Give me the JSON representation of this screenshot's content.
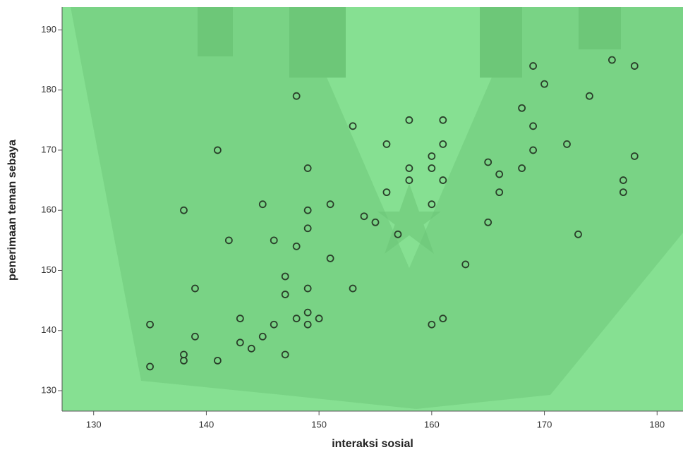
{
  "chart_data": {
    "type": "scatter",
    "x_label": "interaksi sosial",
    "y_label": "penerimaan teman sebaya",
    "x": [
      135,
      135,
      138,
      138,
      138,
      139,
      139,
      141,
      141,
      142,
      143,
      143,
      144,
      145,
      145,
      146,
      146,
      147,
      147,
      147,
      148,
      148,
      148,
      149,
      149,
      149,
      149,
      149,
      149,
      150,
      151,
      151,
      153,
      153,
      154,
      155,
      156,
      156,
      157,
      158,
      158,
      158,
      160,
      160,
      160,
      160,
      161,
      161,
      161,
      161,
      163,
      165,
      165,
      166,
      166,
      168,
      168,
      169,
      169,
      169,
      170,
      172,
      173,
      174,
      176,
      177,
      177,
      178,
      178
    ],
    "values": [
      134,
      141,
      160,
      136,
      135,
      147,
      139,
      170,
      135,
      155,
      142,
      138,
      137,
      161,
      139,
      155,
      141,
      149,
      146,
      136,
      179,
      154,
      142,
      167,
      160,
      157,
      147,
      143,
      141,
      142,
      161,
      152,
      174,
      147,
      159,
      158,
      171,
      163,
      156,
      175,
      167,
      165,
      169,
      167,
      161,
      141,
      175,
      171,
      165,
      142,
      151,
      168,
      158,
      166,
      163,
      177,
      167,
      184,
      174,
      170,
      181,
      171,
      156,
      179,
      185,
      165,
      163,
      184,
      169
    ],
    "color": "#2a3f2a",
    "xlim": [
      127.2,
      182.3
    ],
    "ylim": [
      126.6,
      193.8
    ],
    "xticks": [
      130,
      140,
      150,
      160,
      170,
      180
    ],
    "yticks": [
      130,
      140,
      150,
      160,
      170,
      180,
      190
    ],
    "background": "#86e092"
  }
}
